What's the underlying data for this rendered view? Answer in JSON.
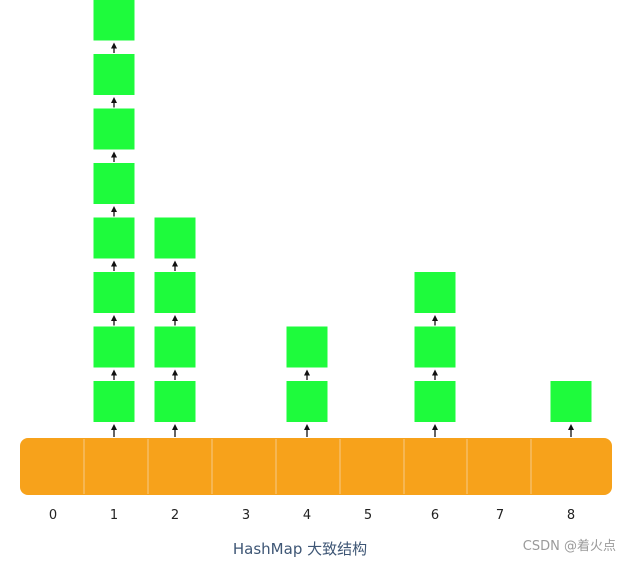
{
  "diagram": {
    "caption": "HashMap 大致结构",
    "buckets": [
      {
        "index": "0",
        "chain_length": 0
      },
      {
        "index": "1",
        "chain_length": 8
      },
      {
        "index": "2",
        "chain_length": 4
      },
      {
        "index": "3",
        "chain_length": 0
      },
      {
        "index": "4",
        "chain_length": 2
      },
      {
        "index": "5",
        "chain_length": 0
      },
      {
        "index": "6",
        "chain_length": 3
      },
      {
        "index": "7",
        "chain_length": 0
      },
      {
        "index": "8",
        "chain_length": 1
      }
    ],
    "colors": {
      "array_fill": "#f7a21b",
      "array_divider": "#f5c477",
      "node_fill": "#1efb3c",
      "arrow": "#111111",
      "label": "#222222",
      "caption": "#3e5675"
    }
  },
  "watermark": "CSDN @着火点"
}
